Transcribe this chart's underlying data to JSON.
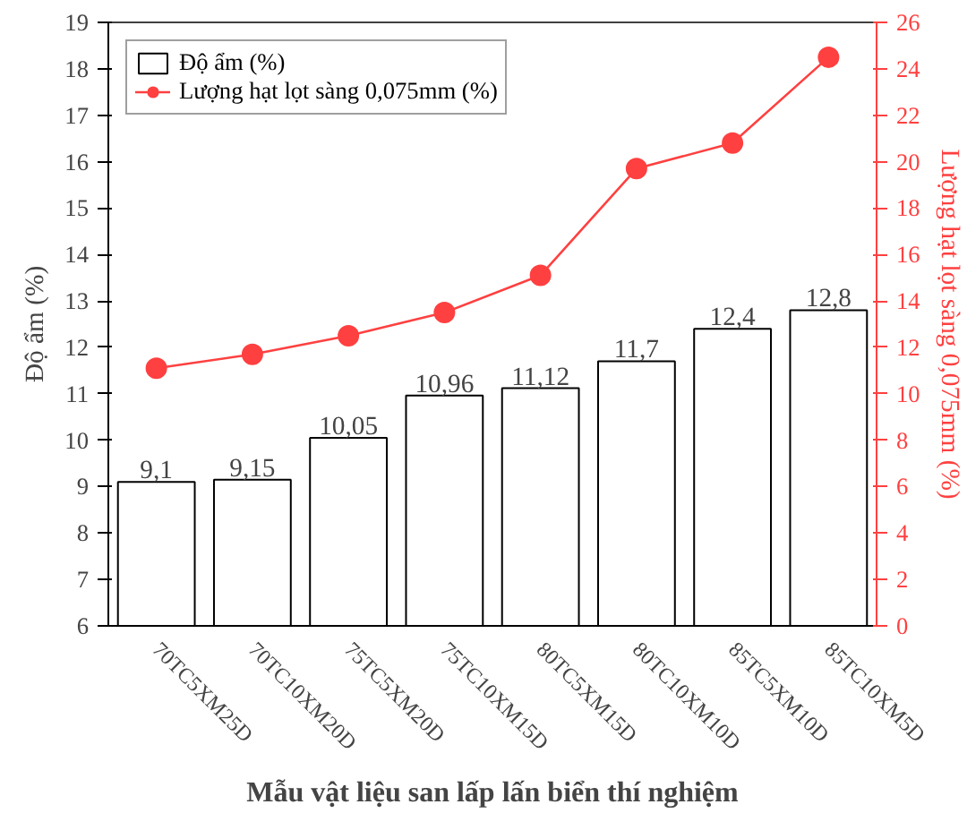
{
  "chart_data": {
    "type": "bar",
    "xlabel": "Mẫu vật liệu san lấp lấn biển thí nghiệm",
    "ylabel": "Độ ẩm (%)",
    "y2label": "Lượng hạt lọt sàng 0,075mm (%)",
    "categories": [
      "70TC5XM25D",
      "70TC10XM20D",
      "75TC5XM20D",
      "75TC10XM15D",
      "80TC5XM15D",
      "80TC10XM10D",
      "85TC5XM10D",
      "85TC10XM5D"
    ],
    "series": [
      {
        "name": "Độ ẩm (%)",
        "color": "#ffffff",
        "values": [
          9.1,
          9.15,
          10.05,
          10.96,
          11.12,
          11.7,
          12.4,
          12.8
        ],
        "value_labels": [
          "9,1",
          "9,15",
          "10,05",
          "10,96",
          "11,12",
          "11,7",
          "12,4",
          "12,8"
        ]
      },
      {
        "name": "Lượng hạt lọt sàng 0,075mm (%)",
        "type": "line",
        "axis": "y2",
        "color": "#ff4040",
        "marker": "circle",
        "values": [
          11.1,
          11.7,
          12.5,
          13.5,
          15.1,
          19.7,
          20.8,
          24.5
        ]
      }
    ],
    "ylim": [
      6,
      19
    ],
    "yticks": [
      6,
      7,
      8,
      9,
      10,
      11,
      12,
      13,
      14,
      15,
      16,
      17,
      18,
      19
    ],
    "y2lim": [
      0,
      26
    ],
    "y2ticks": [
      0,
      2,
      4,
      6,
      8,
      10,
      12,
      14,
      16,
      18,
      20,
      22,
      24,
      26
    ],
    "grid": false,
    "legend": "top left"
  }
}
